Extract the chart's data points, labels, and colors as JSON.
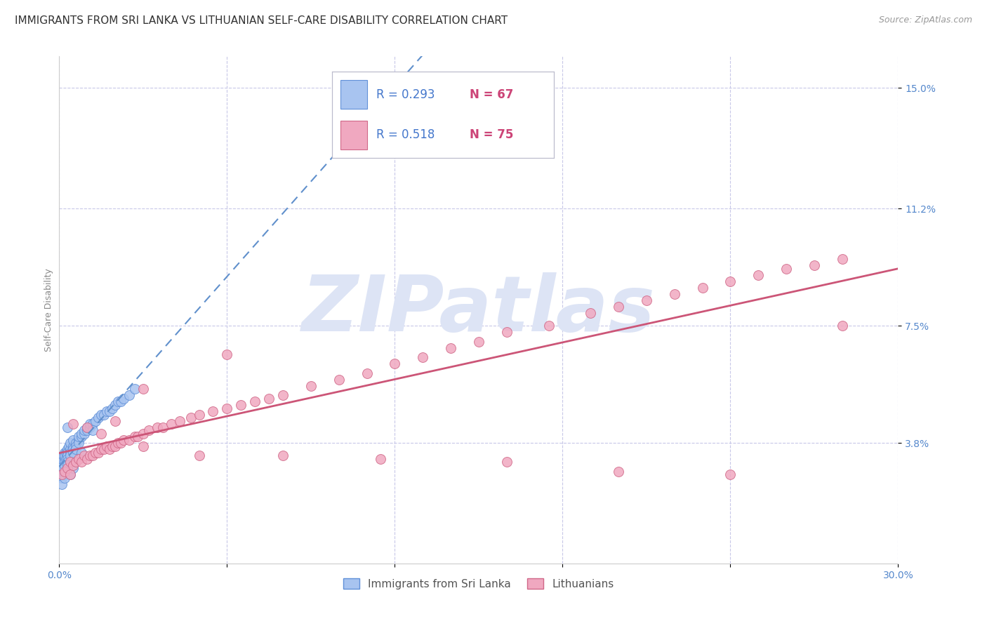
{
  "title": "IMMIGRANTS FROM SRI LANKA VS LITHUANIAN SELF-CARE DISABILITY CORRELATION CHART",
  "source": "Source: ZipAtlas.com",
  "ylabel": "Self-Care Disability",
  "xlim": [
    0.0,
    0.3
  ],
  "ylim": [
    0.0,
    0.16
  ],
  "xtick_positions": [
    0.0,
    0.06,
    0.12,
    0.18,
    0.24,
    0.3
  ],
  "xtick_labels": [
    "0.0%",
    "",
    "",
    "",
    "",
    "30.0%"
  ],
  "ytick_positions": [
    0.038,
    0.075,
    0.112,
    0.15
  ],
  "ytick_labels": [
    "3.8%",
    "7.5%",
    "11.2%",
    "15.0%"
  ],
  "grid_color": "#c8c8e8",
  "background_color": "#ffffff",
  "watermark": "ZIPatlas",
  "watermark_color": "#dde4f5",
  "sri_lanka_color": "#a8c4f0",
  "sri_lanka_edge": "#6090d8",
  "lithuanian_color": "#f0a8c0",
  "lithuanian_edge": "#d06888",
  "trend_sri_lanka_color": "#6090cc",
  "trend_lithuanian_color": "#cc5577",
  "tick_color": "#5588cc",
  "sri_lanka_R": 0.293,
  "sri_lanka_N": 67,
  "lithuanian_R": 0.518,
  "lithuanian_N": 75,
  "legend_R_color": "#4477cc",
  "legend_N_color": "#cc4477",
  "title_fontsize": 11,
  "axis_label_fontsize": 9,
  "tick_fontsize": 10,
  "source_fontsize": 9
}
